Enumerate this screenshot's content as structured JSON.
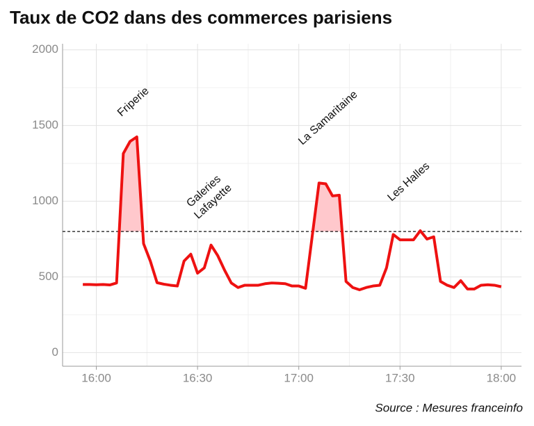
{
  "chart_data": {
    "type": "line",
    "title": "Taux de CO2 dans des commerces parisiens",
    "source": "Source : Mesures franceinfo",
    "x": [
      "15:56",
      "15:58",
      "16:00",
      "16:02",
      "16:04",
      "16:06",
      "16:08",
      "16:10",
      "16:12",
      "16:14",
      "16:16",
      "16:18",
      "16:20",
      "16:22",
      "16:24",
      "16:26",
      "16:28",
      "16:30",
      "16:32",
      "16:34",
      "16:36",
      "16:38",
      "16:40",
      "16:42",
      "16:44",
      "16:46",
      "16:48",
      "16:50",
      "16:52",
      "16:54",
      "16:56",
      "16:58",
      "17:00",
      "17:02",
      "17:06",
      "17:08",
      "17:10",
      "17:12",
      "17:14",
      "17:16",
      "17:18",
      "17:20",
      "17:22",
      "17:24",
      "17:26",
      "17:28",
      "17:30",
      "17:32",
      "17:34",
      "17:36",
      "17:38",
      "17:40",
      "17:42",
      "17:44",
      "17:46",
      "17:48",
      "17:50",
      "17:52",
      "17:54",
      "17:56",
      "17:58",
      "18:00"
    ],
    "values": [
      450,
      450,
      448,
      450,
      447,
      460,
      1315,
      1395,
      1425,
      720,
      605,
      462,
      452,
      445,
      440,
      605,
      650,
      525,
      560,
      710,
      640,
      545,
      460,
      430,
      445,
      445,
      445,
      455,
      460,
      458,
      455,
      440,
      440,
      425,
      1120,
      1115,
      1035,
      1040,
      470,
      430,
      415,
      430,
      440,
      445,
      560,
      780,
      745,
      745,
      745,
      805,
      750,
      765,
      470,
      445,
      430,
      475,
      420,
      420,
      445,
      448,
      445,
      435
    ],
    "color": "#ee1111",
    "threshold": 800,
    "fill_color": "#ffc8cc",
    "annotations": [
      [
        "Friperie"
      ],
      [
        "Galeries",
        "Lafayette"
      ],
      [
        "La Samaritaine"
      ],
      [
        "Les Halles"
      ]
    ],
    "xlim": [
      "15:50",
      "18:06"
    ],
    "xticks": [
      "16:00",
      "16:30",
      "17:00",
      "17:30",
      "18:00"
    ],
    "ylim": [
      -90,
      2040
    ],
    "yticks": [
      0,
      500,
      1000,
      1500,
      2000
    ],
    "grid": true
  }
}
